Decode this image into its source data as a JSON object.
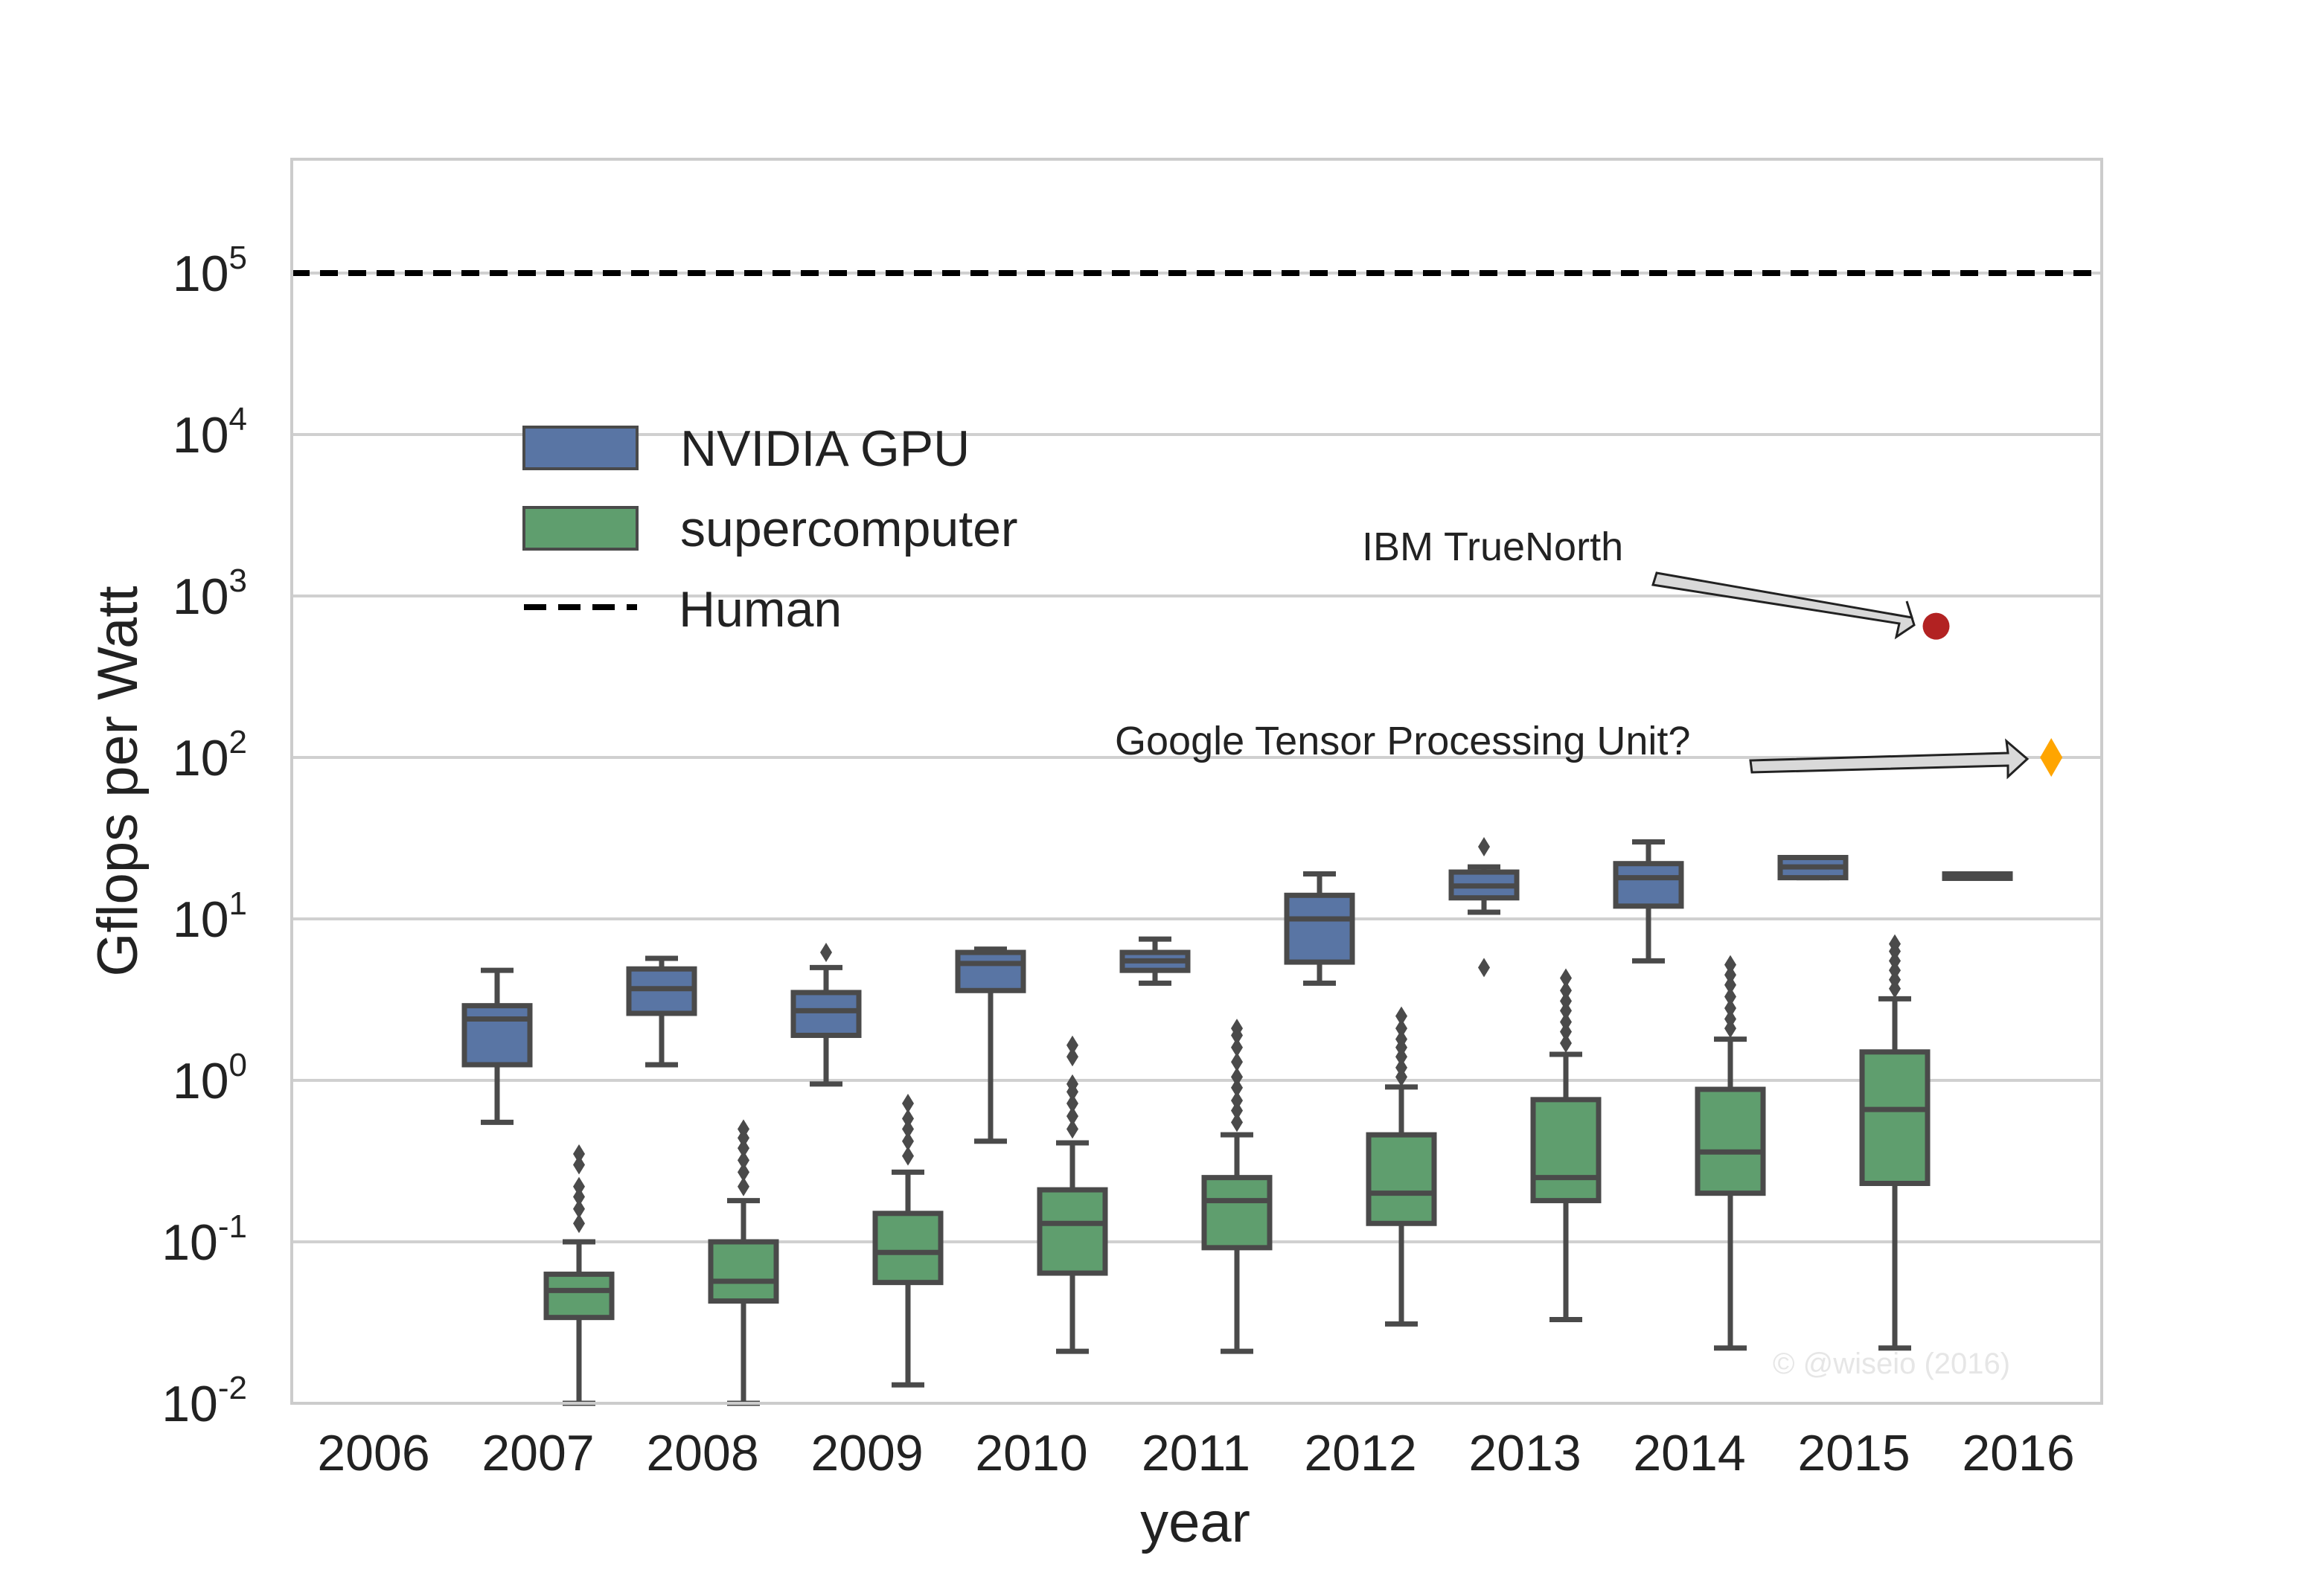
{
  "chart_data": {
    "type": "box",
    "title": "",
    "xlabel": "year",
    "ylabel": "Gflops per Watt",
    "y_scale": "log",
    "ylim": [
      0.01,
      400000
    ],
    "y_ticks": [
      {
        "value": 0.01,
        "base": "10",
        "exp": "-2"
      },
      {
        "value": 0.1,
        "base": "10",
        "exp": "-1"
      },
      {
        "value": 1,
        "base": "10",
        "exp": "0"
      },
      {
        "value": 10,
        "base": "10",
        "exp": "1"
      },
      {
        "value": 100,
        "base": "10",
        "exp": "2"
      },
      {
        "value": 1000,
        "base": "10",
        "exp": "3"
      },
      {
        "value": 10000,
        "base": "10",
        "exp": "4"
      },
      {
        "value": 100000,
        "base": "10",
        "exp": "5"
      }
    ],
    "categories": [
      "2006",
      "2007",
      "2008",
      "2009",
      "2010",
      "2011",
      "2012",
      "2013",
      "2014",
      "2015",
      "2016"
    ],
    "grid": "horizontal",
    "legend_position": "upper-left",
    "colors": {
      "gpu": "#5975a4",
      "supercomputer": "#5f9e6e",
      "outline": "#4a4a4a",
      "human": "#000000",
      "truenorth": "#b22222",
      "tpu": "#ffa500"
    },
    "series": [
      {
        "name": "NVIDIA GPU",
        "boxes": [
          {
            "category": "2007",
            "whislo": 0.55,
            "q1": 1.25,
            "med": 2.4,
            "q3": 2.9,
            "whishi": 4.8,
            "fliers": []
          },
          {
            "category": "2008",
            "whislo": 1.25,
            "q1": 2.6,
            "med": 3.7,
            "q3": 4.9,
            "whishi": 5.7,
            "fliers": []
          },
          {
            "category": "2009",
            "whislo": 0.95,
            "q1": 1.9,
            "med": 2.7,
            "q3": 3.5,
            "whishi": 5.0,
            "fliers": [
              6.2
            ]
          },
          {
            "category": "2010",
            "whislo": 0.42,
            "q1": 3.6,
            "med": 5.3,
            "q3": 6.2,
            "whishi": 6.5,
            "fliers": []
          },
          {
            "category": "2011",
            "whislo": 4.0,
            "q1": 4.8,
            "med": 5.5,
            "q3": 6.2,
            "whishi": 7.5,
            "fliers": []
          },
          {
            "category": "2012",
            "whislo": 4.0,
            "q1": 5.4,
            "med": 10.0,
            "q3": 14.0,
            "whishi": 19.0,
            "fliers": []
          },
          {
            "category": "2013",
            "whislo": 11.0,
            "q1": 13.5,
            "med": 16.0,
            "q3": 19.5,
            "whishi": 21.0,
            "fliers": [
              5.0,
              28.0
            ]
          },
          {
            "category": "2014",
            "whislo": 5.5,
            "q1": 12.0,
            "med": 18.0,
            "q3": 22.0,
            "whishi": 30.0,
            "fliers": []
          },
          {
            "category": "2015",
            "whislo": 18.0,
            "q1": 18.0,
            "med": 21.0,
            "q3": 24.0,
            "whishi": 24.0,
            "fliers": []
          },
          {
            "category": "2016",
            "whislo": 19.0,
            "q1": 19.0,
            "med": 19.0,
            "q3": 19.0,
            "whishi": 19.0,
            "fliers": []
          }
        ]
      },
      {
        "name": "supercomputer",
        "boxes": [
          {
            "category": "2007",
            "whislo": 0.01,
            "q1": 0.034,
            "med": 0.05,
            "q3": 0.063,
            "whishi": 0.1,
            "fliers": [
              0.13,
              0.16,
              0.19,
              0.22,
              0.3,
              0.35
            ]
          },
          {
            "category": "2008",
            "whislo": 0.01,
            "q1": 0.043,
            "med": 0.057,
            "q3": 0.1,
            "whishi": 0.18,
            "fliers": [
              0.22,
              0.27,
              0.32,
              0.38,
              0.44,
              0.5
            ]
          },
          {
            "category": "2009",
            "whislo": 0.013,
            "q1": 0.056,
            "med": 0.086,
            "q3": 0.15,
            "whishi": 0.27,
            "fliers": [
              0.34,
              0.42,
              0.5,
              0.58,
              0.72
            ]
          },
          {
            "category": "2010",
            "whislo": 0.021,
            "q1": 0.064,
            "med": 0.13,
            "q3": 0.21,
            "whishi": 0.41,
            "fliers": [
              0.5,
              0.6,
              0.72,
              0.85,
              0.95,
              1.4,
              1.65
            ]
          },
          {
            "category": "2011",
            "whislo": 0.021,
            "q1": 0.092,
            "med": 0.18,
            "q3": 0.25,
            "whishi": 0.46,
            "fliers": [
              0.55,
              0.65,
              0.75,
              0.9,
              1.05,
              1.3,
              1.6,
              1.9,
              2.1
            ]
          },
          {
            "category": "2012",
            "whislo": 0.031,
            "q1": 0.13,
            "med": 0.2,
            "q3": 0.46,
            "whishi": 0.91,
            "fliers": [
              1.05,
              1.2,
              1.4,
              1.6,
              1.8,
              2.1,
              2.5
            ]
          },
          {
            "category": "2013",
            "whislo": 0.033,
            "q1": 0.18,
            "med": 0.25,
            "q3": 0.76,
            "whishi": 1.45,
            "fliers": [
              1.7,
              2.0,
              2.3,
              2.7,
              3.1,
              3.6,
              4.3
            ]
          },
          {
            "category": "2014",
            "whislo": 0.022,
            "q1": 0.2,
            "med": 0.36,
            "q3": 0.88,
            "whishi": 1.8,
            "fliers": [
              2.1,
              2.4,
              2.8,
              3.3,
              3.9,
              4.5,
              5.2
            ]
          },
          {
            "category": "2015",
            "whislo": 0.022,
            "q1": 0.23,
            "med": 0.66,
            "q3": 1.5,
            "whishi": 3.2,
            "fliers": [
              3.7,
              4.2,
              4.8,
              5.5,
              6.3,
              7.0
            ]
          }
        ]
      },
      {
        "name": "Human",
        "style": "dashed-line",
        "value": 100000
      }
    ],
    "points": [
      {
        "label": "IBM TrueNorth",
        "category_position": 9.5,
        "value": 650,
        "marker": "circle",
        "color": "#b22222"
      },
      {
        "label": "Google Tensor Processing Unit?",
        "category_position": 10.2,
        "value": 100,
        "marker": "diamond",
        "color": "#ffa500"
      }
    ],
    "annotations": [
      "IBM TrueNorth",
      "Google Tensor Processing Unit?"
    ],
    "watermark": "© @wiseio (2016)"
  }
}
